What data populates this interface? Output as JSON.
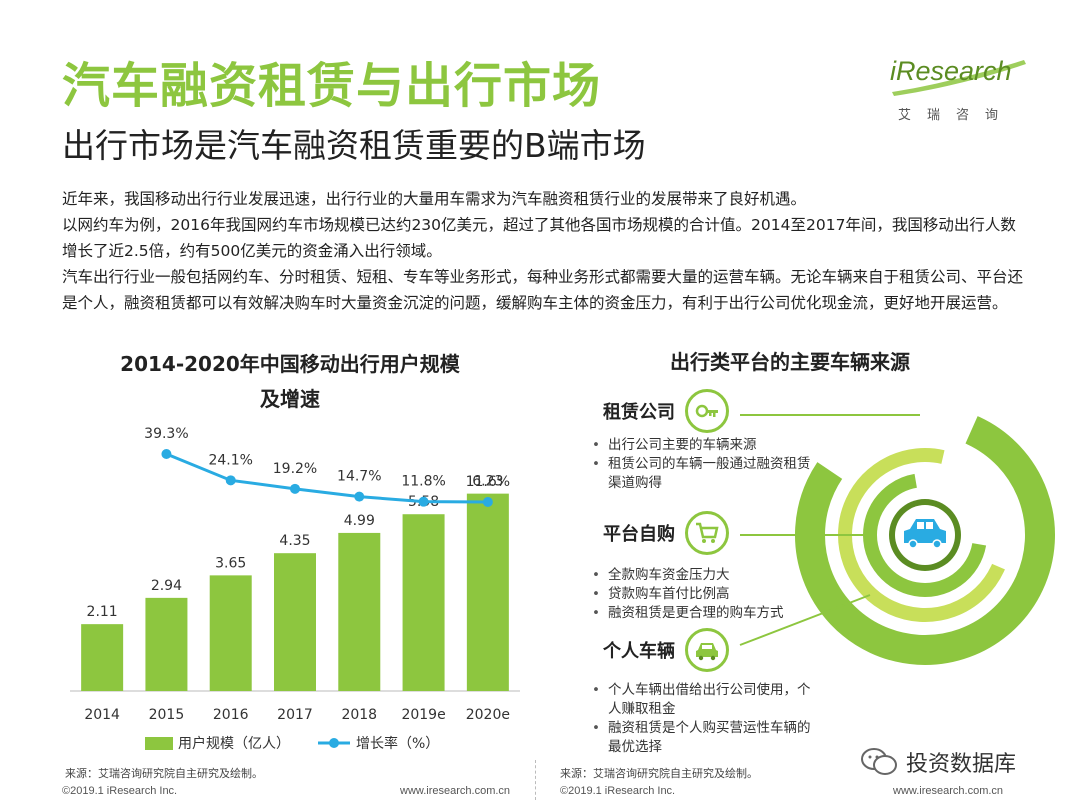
{
  "header": {
    "title": "汽车融资租赁与出行市场",
    "subtitle": "出行市场是汽车融资租赁重要的B端市场"
  },
  "logo": {
    "brand": "iResearch",
    "cn": "艾瑞咨询"
  },
  "intro": {
    "p1": "近年来，我国移动出行行业发展迅速，出行行业的大量用车需求为汽车融资租赁行业的发展带来了良好机遇。",
    "p2": "以网约车为例，2016年我国网约车市场规模已达约230亿美元，超过了其他各国市场规模的合计值。2014至2017年间，我国移动出行人数增长了近2.5倍，约有500亿美元的资金涌入出行领域。",
    "p3": "汽车出行行业一般包括网约车、分时租赁、短租、专车等业务形式，每种业务形式都需要大量的运营车辆。无论车辆来自于租赁公司、平台还是个人，融资租赁都可以有效解决购车时大量资金沉淀的问题，缓解购车主体的资金压力，有利于出行公司优化现金流，更好地开展运营。"
  },
  "chart_data": {
    "type": "bar",
    "title_line1": "2014-2020年中国移动出行用户规模",
    "title_line2": "及增速",
    "categories": [
      "2014",
      "2015",
      "2016",
      "2017",
      "2018",
      "2019e",
      "2020e"
    ],
    "series": [
      {
        "name": "用户规模（亿人）",
        "type": "bar",
        "values": [
          2.11,
          2.94,
          3.65,
          4.35,
          4.99,
          5.58,
          6.23
        ],
        "labels": [
          "2.11",
          "2.94",
          "3.65",
          "4.35",
          "4.99",
          "5.58",
          "6.23"
        ],
        "color": "#8dc63f"
      },
      {
        "name": "增长率（%）",
        "type": "line",
        "values": [
          null,
          39.3,
          24.1,
          19.2,
          14.7,
          11.8,
          11.6
        ],
        "labels": [
          "",
          "39.3%",
          "24.1%",
          "19.2%",
          "14.7%",
          "11.8%",
          "11.6%"
        ],
        "color": "#29abe2"
      }
    ],
    "ylim": [
      0,
      7
    ],
    "rate_lim": [
      0,
      45
    ],
    "legend_position": "bottom",
    "grid": false
  },
  "right": {
    "title": "出行类平台的主要车辆来源",
    "sources": [
      {
        "label": "租赁公司",
        "icon": "key-icon",
        "bullets": [
          "出行公司主要的车辆来源",
          "租赁公司的车辆一般通过融资租赁渠道购得"
        ]
      },
      {
        "label": "平台自购",
        "icon": "cart-icon",
        "bullets": [
          "全款购车资金压力大",
          "贷款购车首付比例高",
          "融资租赁是更合理的购车方式"
        ]
      },
      {
        "label": "个人车辆",
        "icon": "car-icon",
        "bullets": [
          "个人车辆出借给出行公司使用，个人赚取租金",
          "融资租赁是个人购买营运性车辆的最优选择"
        ]
      }
    ]
  },
  "footer": {
    "source_left": "来源：艾瑞咨询研究院自主研究及绘制。",
    "source_right": "来源：艾瑞咨询研究院自主研究及绘制。",
    "copyright_left": "©2019.1 iResearch Inc.",
    "url_left": "www.iresearch.com.cn",
    "copyright_right": "©2019.1 iResearch Inc.",
    "url_right": "www.iresearch.com.cn"
  },
  "watermark": {
    "text": "投资数据库"
  },
  "colors": {
    "accent": "#8dc63f",
    "line": "#29abe2",
    "dark_green": "#5b8c22"
  }
}
